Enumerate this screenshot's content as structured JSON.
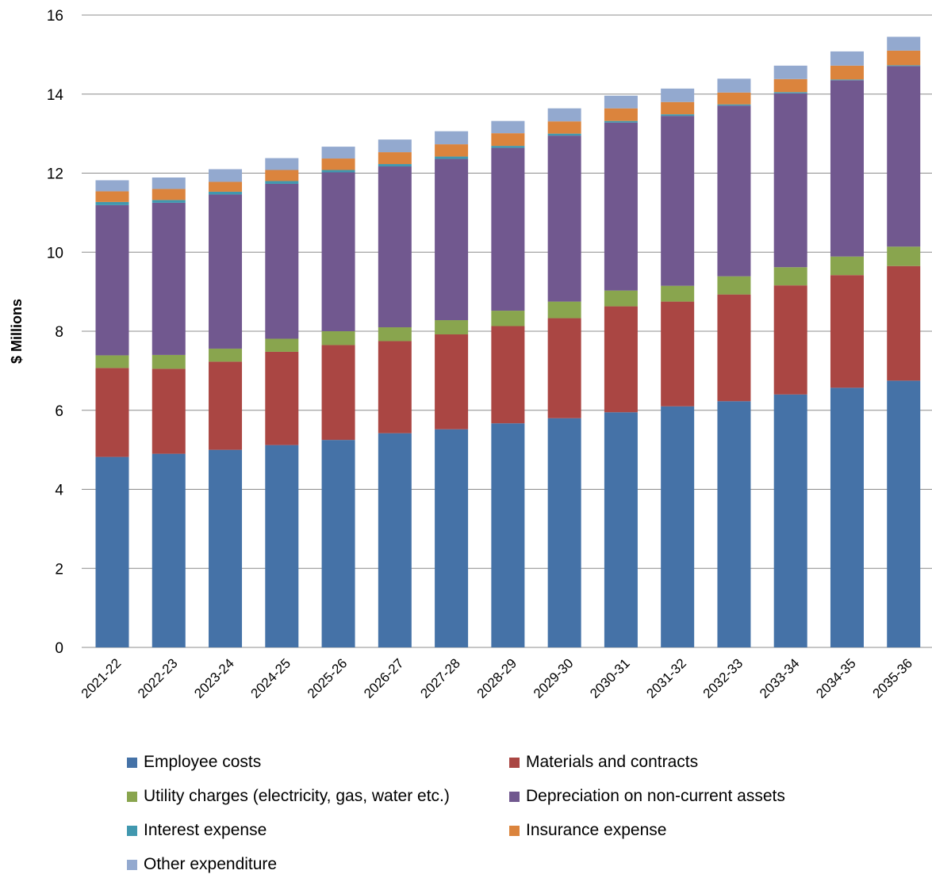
{
  "chart_data": {
    "type": "bar",
    "stacked": true,
    "title": "",
    "xlabel": "",
    "ylabel": "$ Millions",
    "ylim": [
      0,
      16
    ],
    "yticks": [
      0,
      2,
      4,
      6,
      8,
      10,
      12,
      14,
      16
    ],
    "grid": true,
    "legend_position": "bottom",
    "categories": [
      "2021-22",
      "2022-23",
      "2023-24",
      "2024-25",
      "2025-26",
      "2026-27",
      "2027-28",
      "2028-29",
      "2029-30",
      "2030-31",
      "2031-32",
      "2032-33",
      "2033-34",
      "2034-35",
      "2035-36"
    ],
    "series": [
      {
        "name": "Employee costs",
        "color": "#4572A7",
        "values": [
          4.82,
          4.9,
          5.0,
          5.12,
          5.25,
          5.42,
          5.52,
          5.67,
          5.8,
          5.95,
          6.1,
          6.23,
          6.4,
          6.57,
          6.75
        ]
      },
      {
        "name": "Materials and contracts",
        "color": "#AA4643",
        "values": [
          2.25,
          2.15,
          2.23,
          2.36,
          2.4,
          2.33,
          2.4,
          2.46,
          2.53,
          2.68,
          2.65,
          2.7,
          2.76,
          2.85,
          2.9
        ]
      },
      {
        "name": "Utility charges (electricity, gas, water etc.)",
        "color": "#89A54E",
        "values": [
          0.32,
          0.35,
          0.33,
          0.33,
          0.35,
          0.35,
          0.36,
          0.39,
          0.42,
          0.4,
          0.4,
          0.46,
          0.46,
          0.47,
          0.49
        ]
      },
      {
        "name": "Depreciation on non-current assets",
        "color": "#71588F",
        "values": [
          3.8,
          3.85,
          3.9,
          3.92,
          4.02,
          4.07,
          4.08,
          4.12,
          4.2,
          4.25,
          4.3,
          4.32,
          4.4,
          4.46,
          4.57
        ]
      },
      {
        "name": "Interest expense",
        "color": "#4198AF",
        "values": [
          0.08,
          0.07,
          0.07,
          0.07,
          0.06,
          0.06,
          0.06,
          0.05,
          0.05,
          0.04,
          0.04,
          0.03,
          0.03,
          0.02,
          0.02
        ]
      },
      {
        "name": "Insurance expense",
        "color": "#DB843D",
        "values": [
          0.27,
          0.28,
          0.25,
          0.28,
          0.29,
          0.3,
          0.31,
          0.32,
          0.31,
          0.32,
          0.31,
          0.3,
          0.33,
          0.35,
          0.37
        ]
      },
      {
        "name": "Other expenditure",
        "color": "#93A9CF",
        "values": [
          0.28,
          0.29,
          0.32,
          0.3,
          0.3,
          0.32,
          0.33,
          0.31,
          0.33,
          0.32,
          0.34,
          0.35,
          0.34,
          0.36,
          0.35
        ]
      }
    ]
  }
}
